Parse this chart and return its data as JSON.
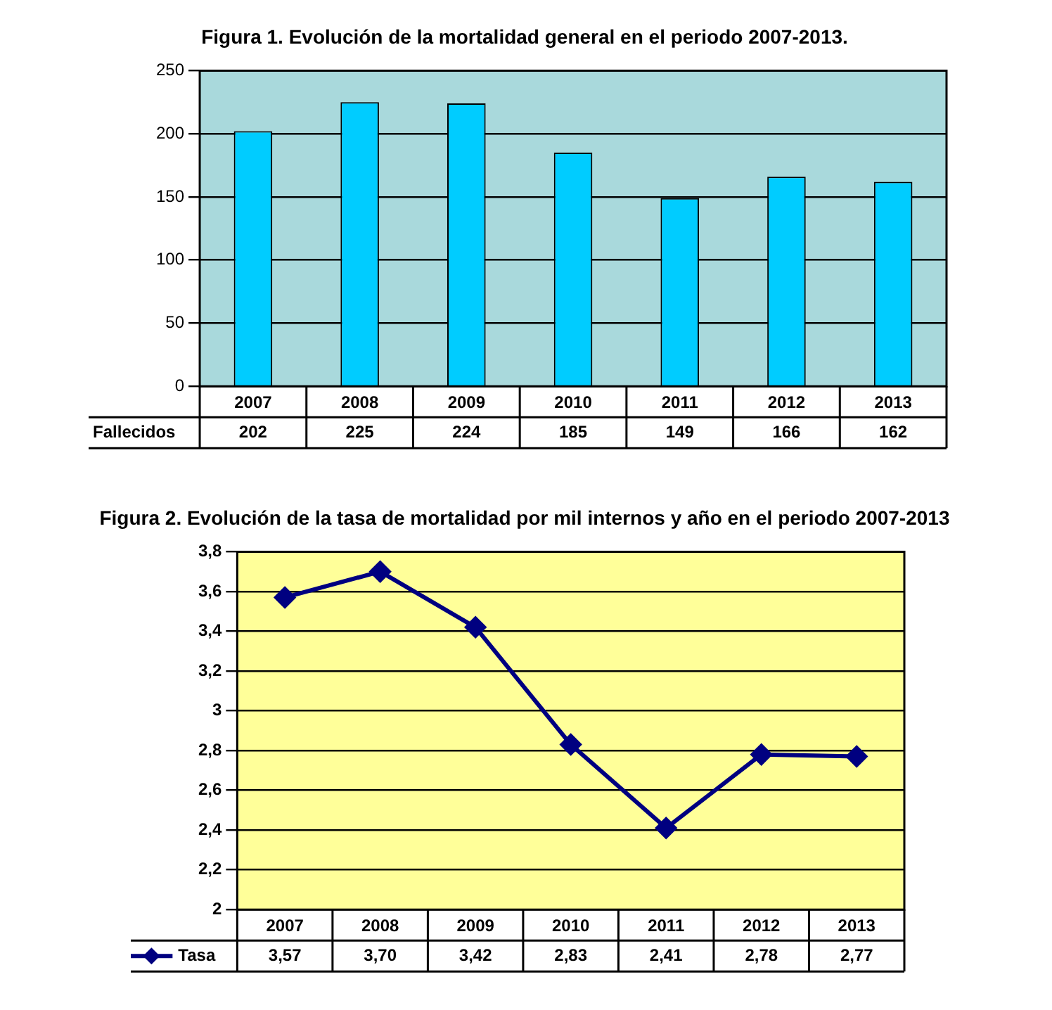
{
  "chart_data": [
    {
      "type": "bar",
      "title": "Figura 1. Evolución de la mortalidad general en el periodo 2007-2013.",
      "categories": [
        "2007",
        "2008",
        "2009",
        "2010",
        "2011",
        "2012",
        "2013"
      ],
      "series": [
        {
          "name": "Fallecidos",
          "color": "#00ccff",
          "values": [
            202,
            225,
            224,
            185,
            149,
            166,
            162
          ]
        }
      ],
      "ylim": [
        0,
        250
      ],
      "yticks": [
        0,
        50,
        100,
        150,
        200,
        250
      ],
      "grid": "y",
      "data_labels": true
    },
    {
      "type": "line",
      "title": "Figura 2. Evolución de la tasa de mortalidad por mil internos y año en el periodo 2007-2013",
      "categories": [
        "2007",
        "2008",
        "2009",
        "2010",
        "2011",
        "2012",
        "2013"
      ],
      "series": [
        {
          "name": "Tasa",
          "color": "#000080",
          "values": [
            3.57,
            3.7,
            3.42,
            2.83,
            2.41,
            2.78,
            2.77
          ],
          "value_labels": [
            "3,57",
            "3,70",
            "3,42",
            "2,83",
            "2,41",
            "2,78",
            "2,77"
          ]
        }
      ],
      "ylim": [
        2,
        3.8
      ],
      "yticks": [
        {
          "value": 2,
          "label": "2"
        },
        {
          "value": 2.2,
          "label": "2,2"
        },
        {
          "value": 2.4,
          "label": "2,4"
        },
        {
          "value": 2.6,
          "label": "2,6"
        },
        {
          "value": 2.8,
          "label": "2,8"
        },
        {
          "value": 3,
          "label": "3"
        },
        {
          "value": 3.2,
          "label": "3,2"
        },
        {
          "value": 3.4,
          "label": "3,4"
        },
        {
          "value": 3.6,
          "label": "3,6"
        },
        {
          "value": 3.8,
          "label": "3,8"
        }
      ],
      "grid": "y",
      "marker": "diamond",
      "line_style": "solid"
    }
  ]
}
